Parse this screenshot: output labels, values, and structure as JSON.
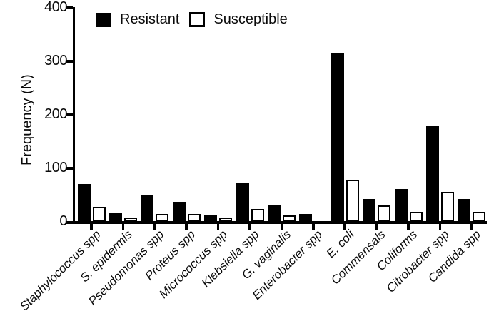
{
  "chart_data": {
    "type": "bar",
    "title": "",
    "ylabel": "Frequency (N)",
    "xlabel": "",
    "ylim": [
      0,
      400
    ],
    "yticks": [
      0,
      100,
      200,
      300,
      400
    ],
    "grid": false,
    "legend_position": "top-inside",
    "categories": [
      "Staphylococcus spp",
      "S. epidermis",
      "Pseudomonas spp",
      "Proteus spp",
      "Micrococcus spp",
      "Klebsiella spp",
      "G. vaginalis",
      "Enterobacter spp",
      "E. coli",
      "Commensals",
      "Coliforms",
      "Citrobacter spp",
      "Candida spp"
    ],
    "series": [
      {
        "name": "Resistant",
        "style": "filled",
        "fill_color": "#000000",
        "values": [
          70,
          15,
          48,
          36,
          11,
          72,
          29,
          13,
          315,
          41,
          60,
          179,
          41
        ]
      },
      {
        "name": "Susceptible",
        "style": "outline",
        "fill_color": "#ffffff",
        "border_color": "#000000",
        "values": [
          27,
          6,
          13,
          14,
          5,
          23,
          11,
          0,
          77,
          29,
          17,
          55,
          17
        ]
      }
    ]
  },
  "colors": {
    "axis": "#000000",
    "background": "#ffffff",
    "text": "#0a0a0a"
  }
}
